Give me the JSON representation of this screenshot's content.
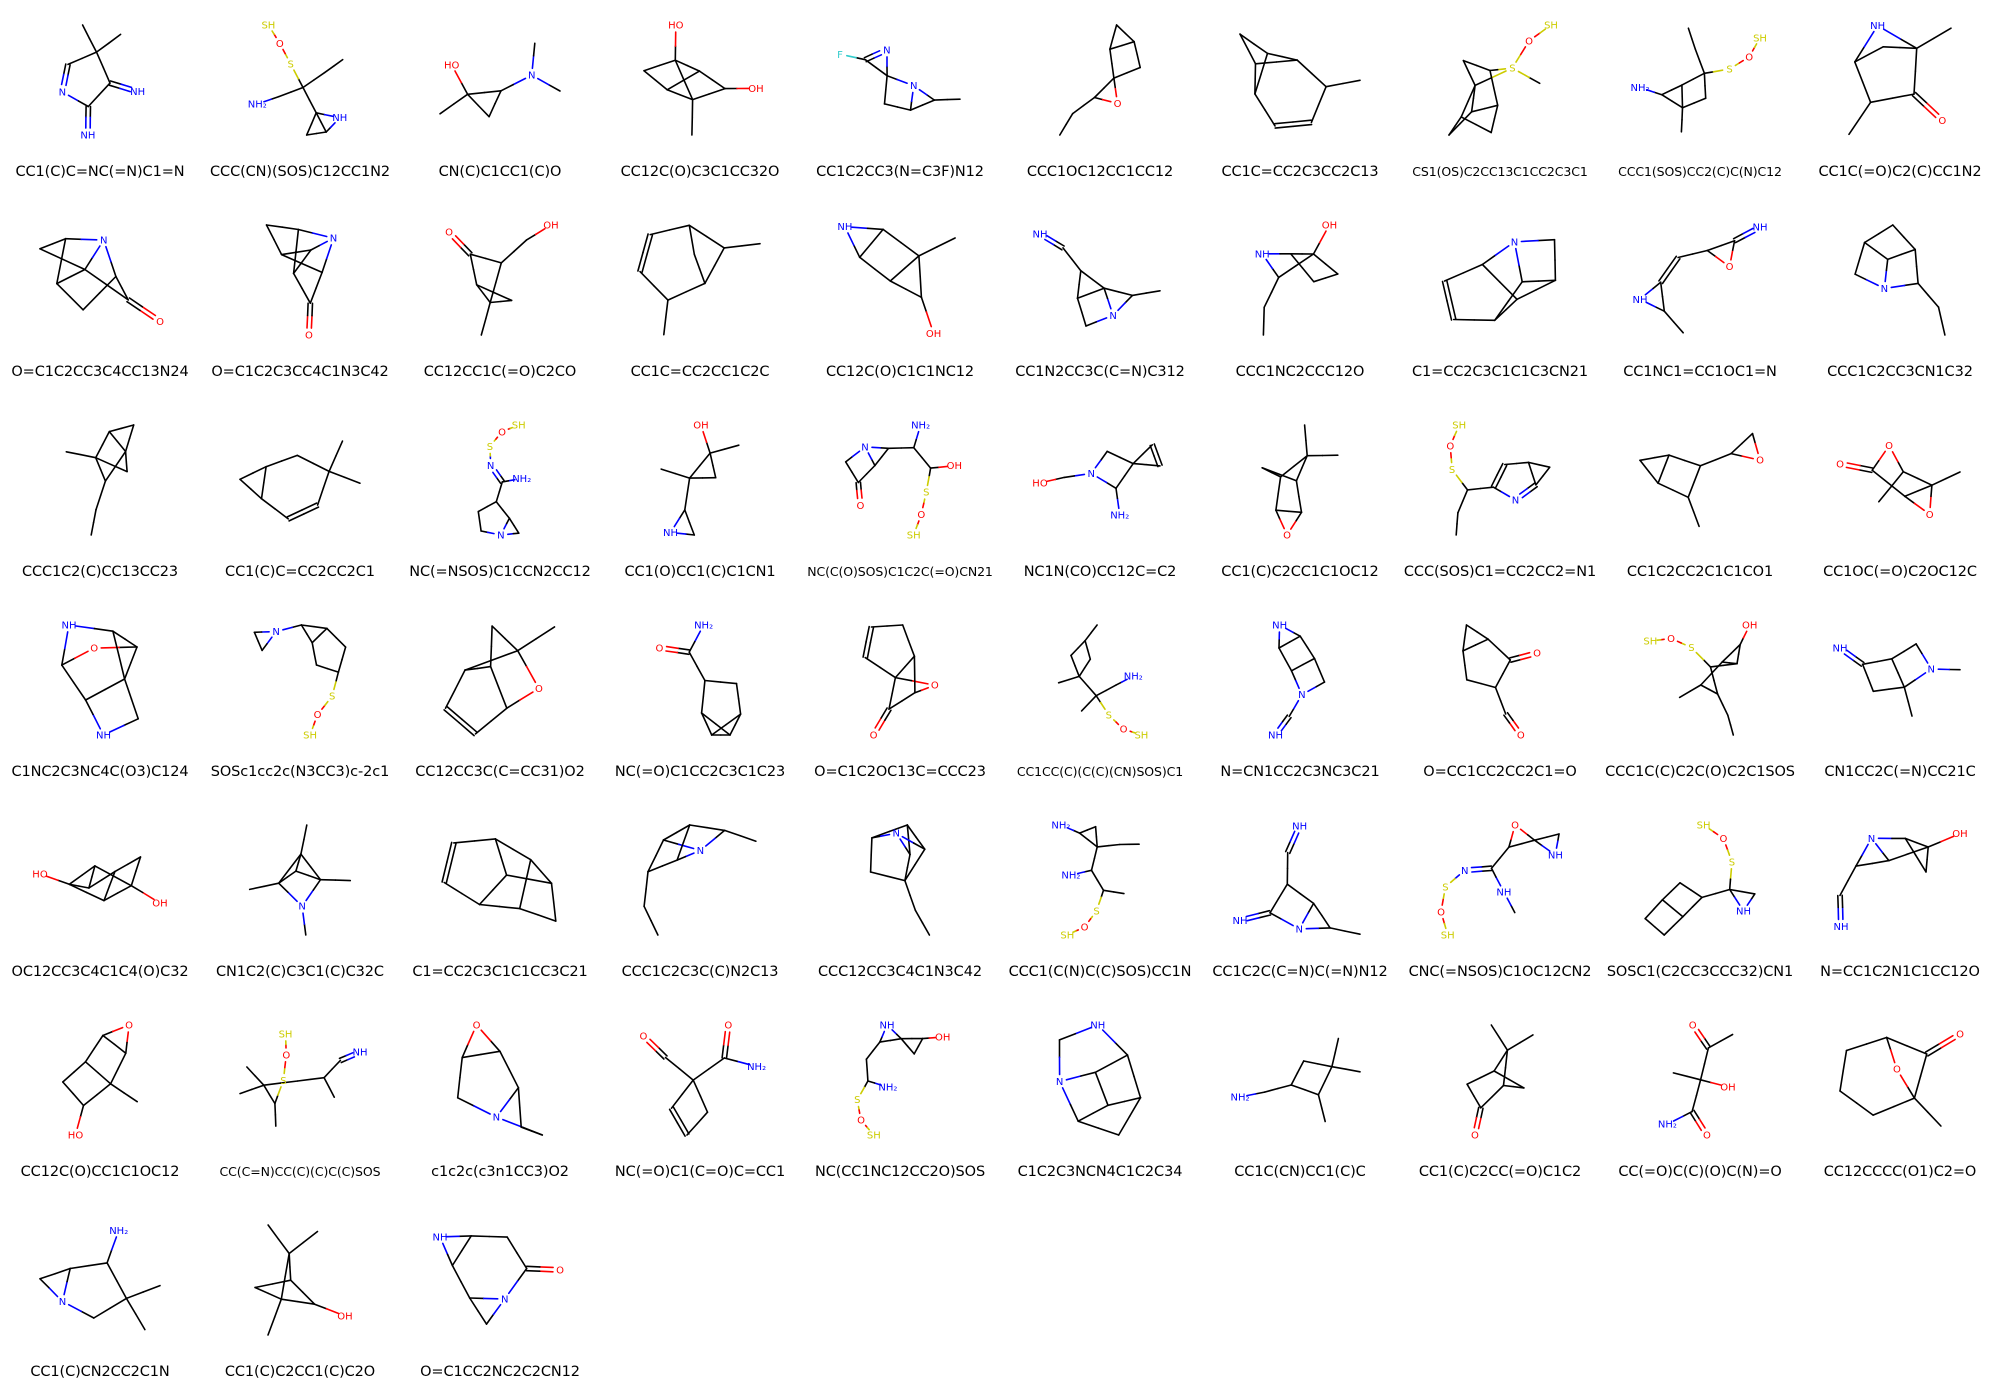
{
  "molecules": [
    "CC1(C)C=NC(=N)C1=N",
    "CCC(CN)(SOS)C12CC1N2",
    "CN(C)C1CC1(C)O",
    "CC12C(O)C3C1CC32O",
    "CC1C2CC3(N=C3F)N12",
    "CCC1OC12CC1CC12",
    "CC1C=CC2C3CC2C13",
    "CS1(OS)C2CC13C1CC2C3C1",
    "CCC1(SOS)CC2(C)C(N)C12",
    "CC1C(=O)C2(C)CC1N2",
    "O=C1C2CC3C4CC13N24",
    "O=C1C2C3CC4C1N3C42",
    "CC12CC1C(=O)C2CO",
    "CC1C=CC2CC1C2C",
    "CC12C(O)C1C1NC12",
    "CC1N2CC3C(C=N)C312",
    "CCC1NC2CCC12O",
    "C1=CC2C3C1C1C3CN21",
    "CC1NC1=CC1OC1=N",
    "CCC1C2CC3CN1C32",
    "CCC1C2(C)CC13CC23",
    "CC1(C)C=CC2CC2C1",
    "NC(=NSOS)C1CCN2CC12",
    "CC1(O)CC1(C)C1CN1",
    "NC(C(O)SOS)C1C2C(=O)CN21",
    "NC1N(CO)CC12C=C2",
    "CC1(C)C2CC1C1OC12",
    "CCC(SOS)C1=CC2CC2=N1",
    "CC1C2CC2C1C1CO1",
    "CC1OC(=O)C2OC12C",
    "C1NC2C3NC4C(O3)C124",
    "SOSc1cc2c(N3CC3)c-2c1",
    "CC12CC3C(C=CC31)O2",
    "NC(=O)C1CC2C3C1C23",
    "O=C1C2OC13C=CCC23",
    "CC1CC(C)(C(C)(CN)SOS)C1",
    "N=CN1CC2C3NC3C21",
    "O=CC1CC2CC2C1=O",
    "CCC1C(C)C2C(O)C2C1SOS",
    "CN1CC2C(=N)CC21C",
    "OC12CC3C4C1C4(O)C32",
    "CN1C2(C)C3C1(C)C32C",
    "C1=CC2C3C1C1CC3C21",
    "CCC1C2C3C(C)N2C13",
    "CCC12CC3C4C1N3C42",
    "CCC1(C(N)C(C)SOS)CC1N",
    "CC1C2C(C=N)C(=N)N12",
    "CNC(=NSOS)C1OC12CN2",
    "SOSC1(C2CC3CCC32)CN1",
    "N=CC1C2N1C1CC12O",
    "CC12C(O)CC1C1OC12",
    "CC(C=N)CC(C)(C)C(C)SOS",
    "c1c2c(c3n1CC3)O2",
    "NC(=O)C1(C=O)C=CC1",
    "NC(CC1NC12CC2O)SOS",
    "C1C2C3NCN4C1C2C34",
    "CC1C(CN)CC1(C)C",
    "CC1(C)C2CC(=O)C1C2",
    "CC(=O)C(C)(O)C(N)=O",
    "CC12CCCC(O1)C2=O",
    "CC1(C)CN2CC2C1N",
    "CC1(C)C2CC1(C)C2O",
    "O=C1CC2NC2C2CN12"
  ],
  "atom_colors": {
    "C": "#000000",
    "N": "#0000FF",
    "O": "#FF0000",
    "S": "#CCCC00",
    "F": "#33CCCC"
  }
}
